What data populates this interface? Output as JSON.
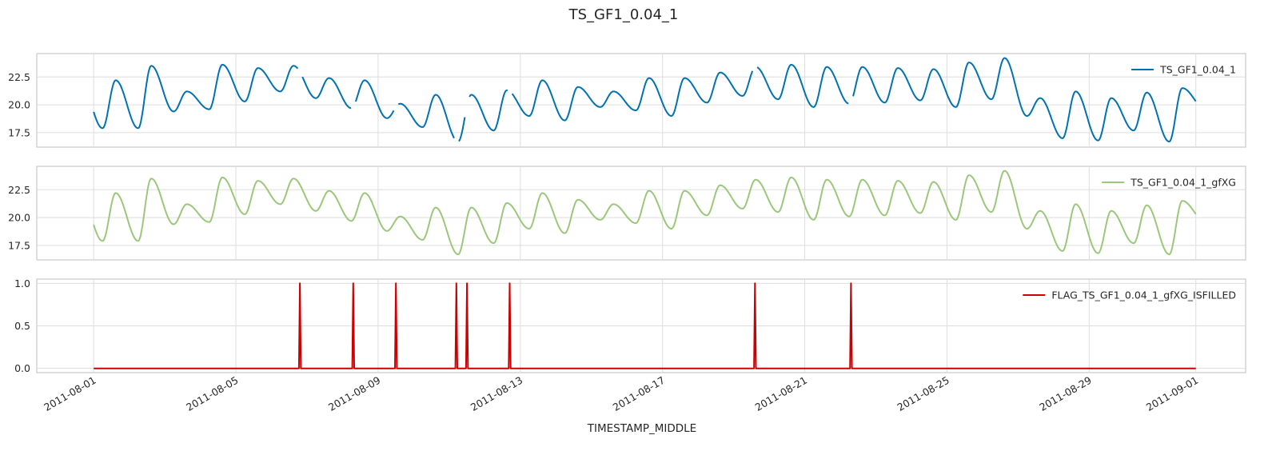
{
  "chart_data": {
    "type": "line",
    "title": "TS_GF1_0.04_1",
    "xlabel": "TIMESTAMP_MIDDLE",
    "x_tick_labels": [
      "2011-08-01",
      "2011-08-05",
      "2011-08-09",
      "2011-08-13",
      "2011-08-17",
      "2011-08-21",
      "2011-08-25",
      "2011-08-29",
      "2011-09-01"
    ],
    "x_tick_days": [
      0,
      4,
      8,
      12,
      16,
      20,
      24,
      28,
      31
    ],
    "x_range_days": [
      -1.6,
      32.4
    ],
    "panels": [
      {
        "series_name": "TS_GF1_0.04_1",
        "color": "#0072B2",
        "legend": "upper-right",
        "ylim": [
          16.2,
          24.6
        ],
        "yticks": [
          17.5,
          20.0,
          22.5
        ],
        "ytick_labels": [
          "17.5",
          "20.0",
          "22.5"
        ],
        "has_gaps": true
      },
      {
        "series_name": "TS_GF1_0.04_1_gfXG",
        "color": "#9BC77B",
        "legend": "upper-right",
        "ylim": [
          16.2,
          24.6
        ],
        "yticks": [
          17.5,
          20.0,
          22.5
        ],
        "ytick_labels": [
          "17.5",
          "20.0",
          "22.5"
        ],
        "has_gaps": false
      },
      {
        "series_name": "FLAG_TS_GF1_0.04_1_gfXG_ISFILLED",
        "color": "#CC0000",
        "legend": "upper-right",
        "ylim": [
          -0.05,
          1.05
        ],
        "yticks": [
          0.0,
          0.5,
          1.0
        ],
        "ytick_labels": [
          "0.0",
          "0.5",
          "1.0"
        ],
        "flag_spikes_days": [
          5.8,
          7.3,
          8.5,
          10.2,
          10.5,
          11.7,
          18.6,
          21.3
        ]
      }
    ],
    "temperature_daily": {
      "day": [
        0,
        1,
        2,
        3,
        4,
        5,
        6,
        7,
        8,
        9,
        10,
        11,
        12,
        13,
        14,
        15,
        16,
        17,
        18,
        19,
        20,
        21,
        22,
        23,
        24,
        25,
        26,
        27,
        28,
        29,
        30,
        31
      ],
      "min": [
        17.9,
        17.9,
        19.4,
        19.6,
        20.3,
        21.2,
        20.6,
        19.7,
        18.8,
        18.0,
        16.7,
        17.7,
        19.0,
        18.6,
        19.8,
        19.5,
        19.0,
        20.2,
        20.8,
        20.5,
        19.8,
        20.1,
        20.2,
        20.4,
        19.8,
        20.5,
        19.0,
        17.0,
        16.8,
        17.7,
        16.7,
        19.7
      ],
      "max": [
        22.2,
        23.5,
        21.2,
        23.6,
        23.3,
        23.5,
        22.4,
        22.2,
        20.1,
        20.9,
        20.9,
        21.3,
        22.2,
        21.6,
        21.2,
        22.4,
        22.4,
        22.9,
        23.4,
        23.6,
        23.4,
        23.4,
        23.3,
        23.2,
        23.8,
        24.2,
        20.6,
        21.2,
        20.6,
        21.1,
        21.5,
        21.5
      ]
    }
  }
}
